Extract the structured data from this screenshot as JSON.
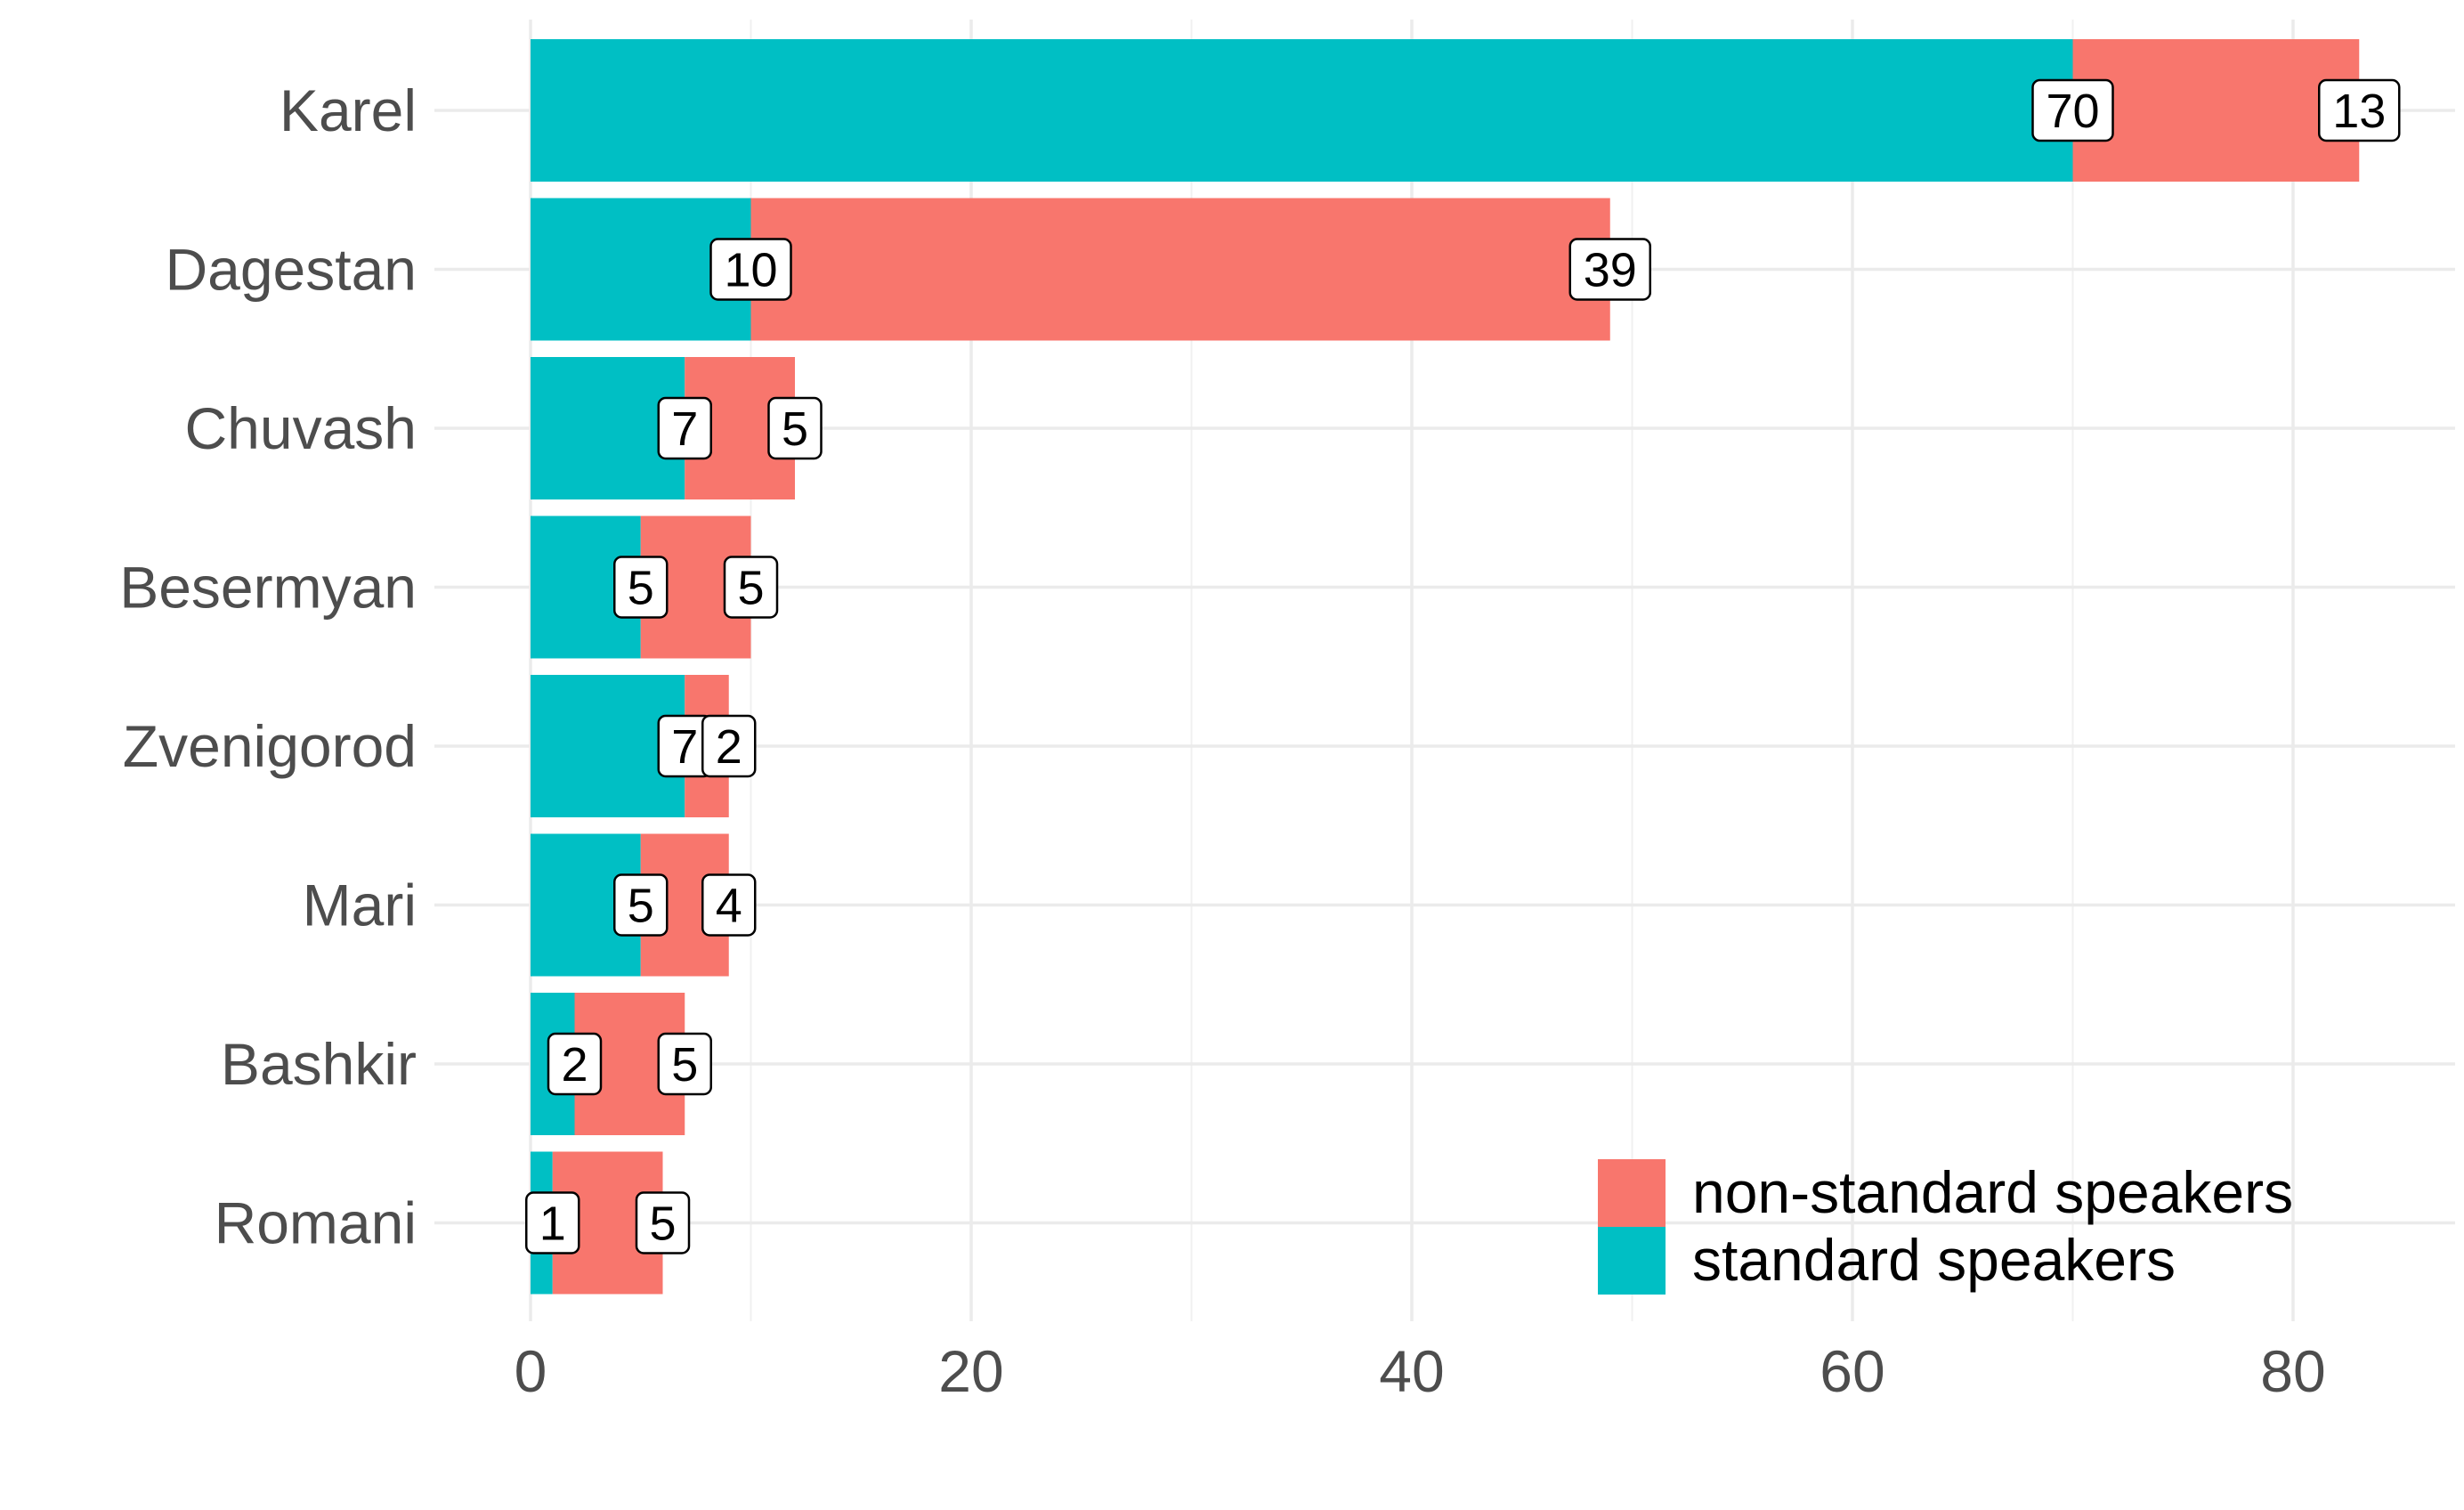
{
  "chart_data": {
    "type": "bar",
    "orientation": "horizontal",
    "stacked": true,
    "categories": [
      "Karel",
      "Dagestan",
      "Chuvash",
      "Besermyan",
      "Zvenigorod",
      "Mari",
      "Bashkir",
      "Romani"
    ],
    "series": [
      {
        "name": "standard speakers",
        "color": "#00BFC4",
        "values": [
          70,
          10,
          7,
          5,
          7,
          5,
          2,
          1
        ]
      },
      {
        "name": "non-standard speakers",
        "color": "#F8766D",
        "values": [
          13,
          39,
          5,
          5,
          2,
          4,
          5,
          5
        ]
      }
    ],
    "xlim": [
      0,
      86.9
    ],
    "x_ticks": [
      "0",
      "20",
      "40",
      "60",
      "80"
    ],
    "x_tick_values": [
      0,
      20,
      40,
      60,
      80
    ],
    "title": "",
    "xlabel": "",
    "ylabel": "",
    "grid": true,
    "data_labels": true,
    "legend": {
      "position": "bottom-right",
      "entries": [
        "non-standard speakers",
        "standard speakers"
      ]
    }
  }
}
